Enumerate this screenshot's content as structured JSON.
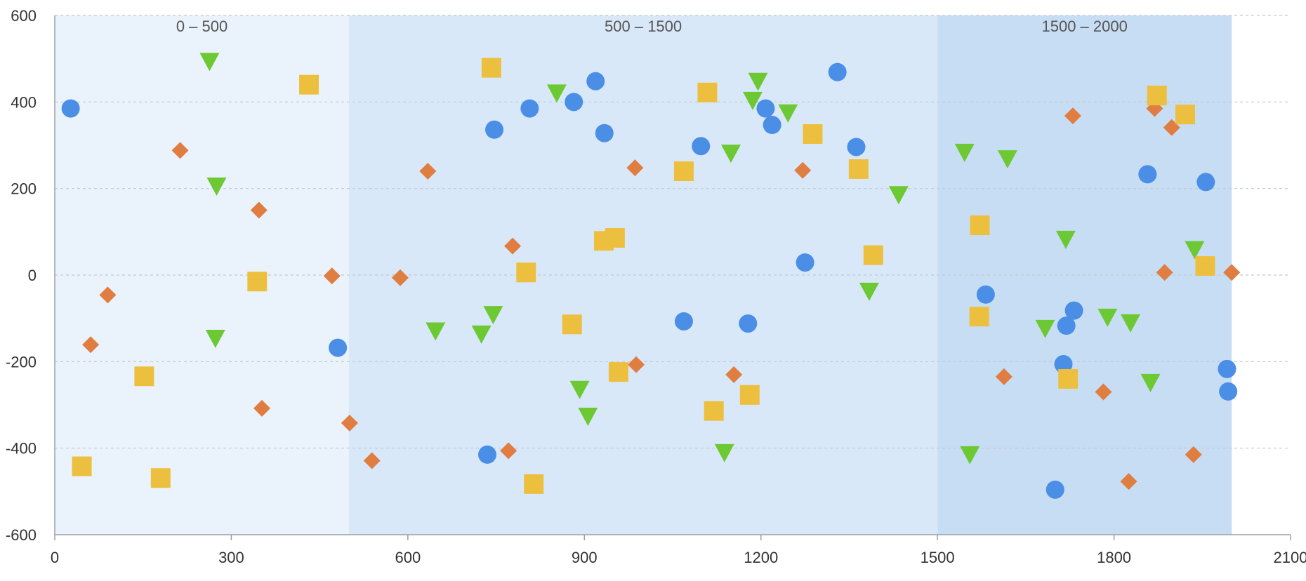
{
  "chart_data": {
    "type": "scatter",
    "xlim": [
      0,
      2100
    ],
    "ylim": [
      -600,
      600
    ],
    "x_ticks": [
      "0",
      "300",
      "600",
      "900",
      "1200",
      "1500",
      "1800",
      "2100"
    ],
    "y_ticks": [
      "600",
      "400",
      "200",
      "0",
      "-200",
      "-400",
      "-600"
    ],
    "grid": "horizontal-dashed",
    "bands": [
      {
        "label": "0 – 500",
        "from": 0,
        "to": 500,
        "color": "#eaf2fc"
      },
      {
        "label": "500 – 1500",
        "from": 500,
        "to": 1500,
        "color": "#d9e8f8"
      },
      {
        "label": "1500 – 2000",
        "from": 1500,
        "to": 2000,
        "color": "#c7ddf4"
      }
    ],
    "series": [
      {
        "marker": "circle",
        "color": "#4a8ee6",
        "points": [
          [
            27,
            385
          ],
          [
            481,
            -168
          ],
          [
            747,
            336
          ],
          [
            735,
            -415
          ],
          [
            807,
            385
          ],
          [
            882,
            400
          ],
          [
            919,
            448
          ],
          [
            934,
            328
          ],
          [
            1098,
            298
          ],
          [
            1069,
            -107
          ],
          [
            1178,
            -112
          ],
          [
            1208,
            385
          ],
          [
            1219,
            347
          ],
          [
            1275,
            29
          ],
          [
            1330,
            469
          ],
          [
            1362,
            296
          ],
          [
            1582,
            -45
          ],
          [
            1700,
            -496
          ],
          [
            1714,
            -206
          ],
          [
            1719,
            -117
          ],
          [
            1732,
            -82
          ],
          [
            1857,
            233
          ],
          [
            1956,
            215
          ],
          [
            1992,
            -217
          ],
          [
            1994,
            -269
          ]
        ]
      },
      {
        "marker": "diamond",
        "color": "#e07d40",
        "points": [
          [
            61,
            -161
          ],
          [
            90,
            -46
          ],
          [
            213,
            288
          ],
          [
            347,
            150
          ],
          [
            352,
            -308
          ],
          [
            471,
            -2
          ],
          [
            501,
            -342
          ],
          [
            539,
            -429
          ],
          [
            587,
            -6
          ],
          [
            634,
            240
          ],
          [
            778,
            67
          ],
          [
            771,
            -406
          ],
          [
            986,
            248
          ],
          [
            988,
            -207
          ],
          [
            1154,
            -230
          ],
          [
            1271,
            242
          ],
          [
            1613,
            -235
          ],
          [
            1730,
            368
          ],
          [
            1782,
            -270
          ],
          [
            1825,
            -477
          ],
          [
            1869,
            385
          ],
          [
            1886,
            6
          ],
          [
            1898,
            341
          ],
          [
            1935,
            -415
          ],
          [
            2000,
            6
          ]
        ]
      },
      {
        "marker": "triangle-down",
        "color": "#6cc934",
        "points": [
          [
            263,
            494
          ],
          [
            275,
            206
          ],
          [
            273,
            -146
          ],
          [
            647,
            -129
          ],
          [
            725,
            -136
          ],
          [
            745,
            -91
          ],
          [
            853,
            421
          ],
          [
            892,
            -264
          ],
          [
            906,
            -326
          ],
          [
            1138,
            -410
          ],
          [
            1149,
            282
          ],
          [
            1186,
            404
          ],
          [
            1195,
            448
          ],
          [
            1246,
            375
          ],
          [
            1384,
            -37
          ],
          [
            1434,
            186
          ],
          [
            1546,
            284
          ],
          [
            1555,
            -415
          ],
          [
            1619,
            269
          ],
          [
            1683,
            -123
          ],
          [
            1718,
            83
          ],
          [
            1789,
            -97
          ],
          [
            1828,
            -110
          ],
          [
            1862,
            -248
          ],
          [
            1937,
            59
          ]
        ]
      },
      {
        "marker": "square",
        "color": "#ecc03e",
        "points": [
          [
            46,
            -442
          ],
          [
            152,
            -234
          ],
          [
            180,
            -469
          ],
          [
            344,
            -15
          ],
          [
            432,
            440
          ],
          [
            742,
            479
          ],
          [
            801,
            6
          ],
          [
            814,
            -483
          ],
          [
            879,
            -114
          ],
          [
            933,
            79
          ],
          [
            952,
            86
          ],
          [
            958,
            -224
          ],
          [
            1069,
            240
          ],
          [
            1109,
            422
          ],
          [
            1120,
            -314
          ],
          [
            1181,
            -277
          ],
          [
            1288,
            326
          ],
          [
            1366,
            245
          ],
          [
            1391,
            46
          ],
          [
            1572,
            115
          ],
          [
            1571,
            -96
          ],
          [
            1722,
            -240
          ],
          [
            1873,
            415
          ],
          [
            1921,
            371
          ],
          [
            1955,
            21
          ]
        ]
      }
    ]
  }
}
